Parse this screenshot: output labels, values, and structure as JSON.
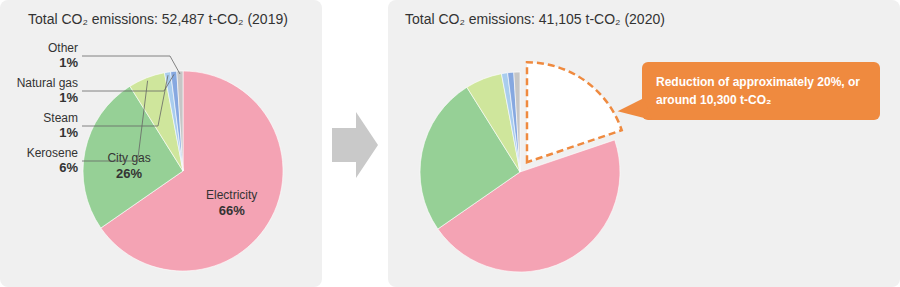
{
  "chart_data": [
    {
      "type": "pie",
      "title": "Total CO₂ emissions: 52,487 t-CO₂ (2019)",
      "categories": [
        "Electricity",
        "City gas",
        "Kerosene",
        "Steam",
        "Natural gas",
        "Other"
      ],
      "values": [
        66,
        26,
        6,
        1,
        1,
        1
      ],
      "value_labels": [
        "66%",
        "26%",
        "6%",
        "1%",
        "1%",
        "1%"
      ],
      "colors": [
        "#f4a3b4",
        "#96d096",
        "#cfe69c",
        "#a9cdee",
        "#86a8e0",
        "#c6c6c6"
      ],
      "data_labels": true
    },
    {
      "type": "pie",
      "title": "Total CO₂ emissions: 41,105 t-CO₂ (2020)",
      "values": [
        46,
        26,
        6,
        1,
        1,
        1
      ],
      "colors": [
        "#f4a3b4",
        "#96d096",
        "#cfe69c",
        "#a9cdee",
        "#86a8e0",
        "#c6c6c6"
      ],
      "data_labels": false,
      "annotations": [
        {
          "text": [
            "Reduction of approximately 20%, or",
            "around 10,300 t-CO₂"
          ],
          "value": 20,
          "line_style": "dashed",
          "color": "#ef8a3f"
        }
      ]
    }
  ]
}
